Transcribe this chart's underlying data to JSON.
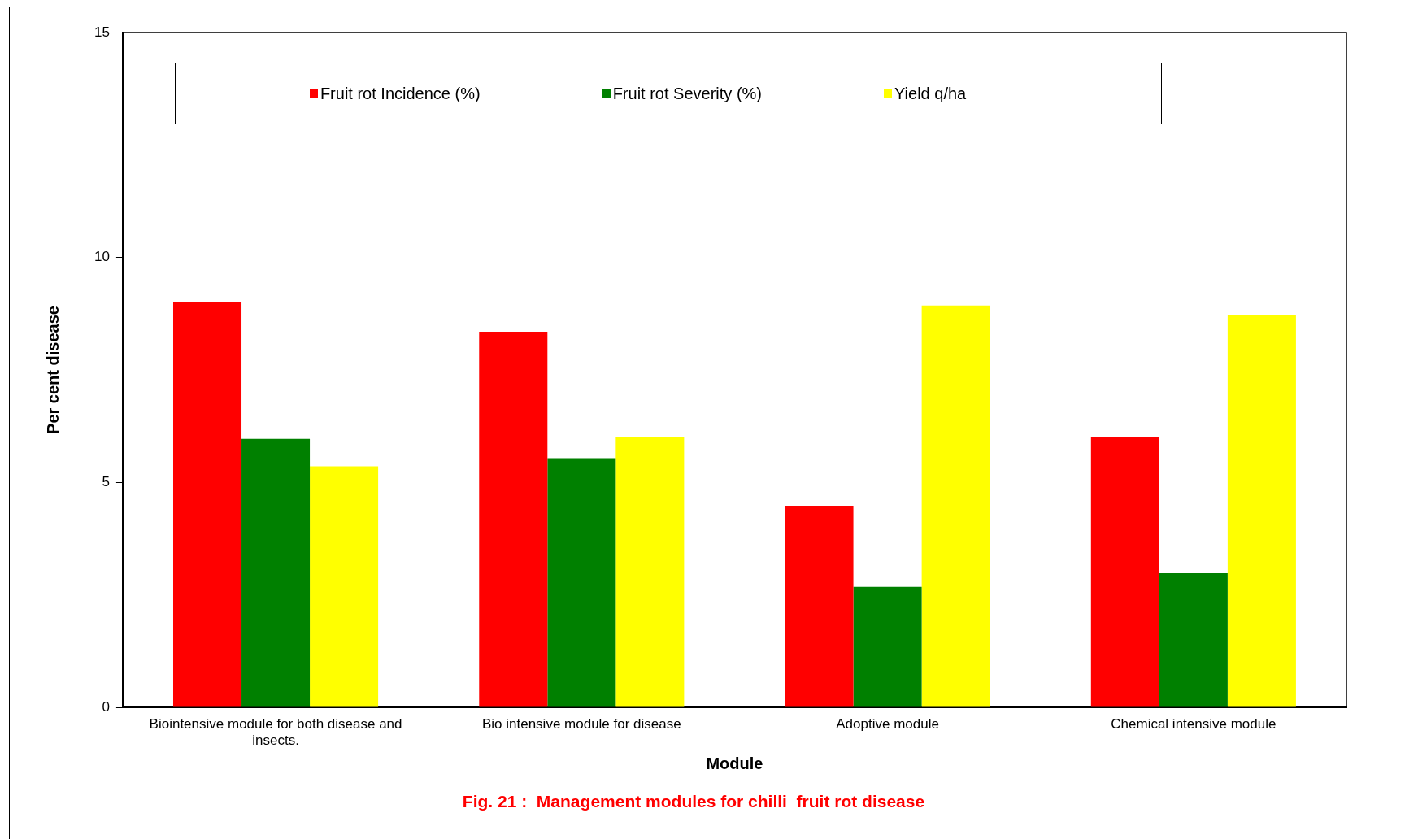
{
  "chart_data": {
    "type": "bar",
    "title": "Fig. 21 :  Management modules for chilli  fruit rot disease",
    "xlabel": "Module",
    "ylabel": "Per cent disease",
    "categories": [
      "Biointensive module for both disease and insects.",
      "Bio intensive module for disease",
      "Adoptive module",
      "Chemical intensive module"
    ],
    "series": [
      {
        "name": "Fruit rot Incidence (%)",
        "color": "#ff0000",
        "values": [
          9.0,
          8.35,
          4.48,
          6.0
        ]
      },
      {
        "name": "Fruit rot Severity (%)",
        "color": "#008000",
        "values": [
          5.97,
          5.54,
          2.68,
          2.98
        ]
      },
      {
        "name": "Yield q/ha",
        "color": "#ffff00",
        "values": [
          5.36,
          6.0,
          8.93,
          8.71
        ]
      }
    ],
    "ylim": [
      0,
      15
    ],
    "yticks": [
      0,
      5,
      10,
      15
    ],
    "grid": false,
    "legend": "top"
  }
}
